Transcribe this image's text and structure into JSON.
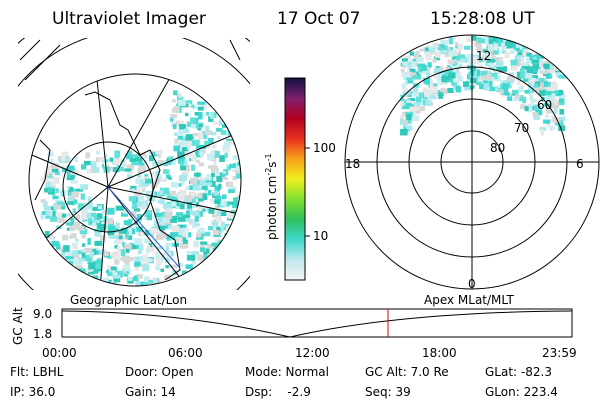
{
  "header": {
    "title": "Ultraviolet Imager",
    "date": "17 Oct 07",
    "time": "15:28:08 UT"
  },
  "colorbar": {
    "ticks": [
      "100",
      "10"
    ],
    "unit": {
      "base": "photon cm",
      "exp1": "-2",
      "mid": "s",
      "exp2": "-1"
    }
  },
  "polar": {
    "mlt": [
      "12",
      "18",
      "6",
      "0"
    ],
    "mlat": [
      "60",
      "70",
      "80"
    ]
  },
  "captions": {
    "left": "Geographic Lat/Lon",
    "right": "Apex MLat/MLT"
  },
  "altitude": {
    "ylabel": "GC Alt",
    "yticks": [
      "9.0",
      "1.8"
    ],
    "xticks": [
      "00:00",
      "06:00",
      "12:00",
      "18:00",
      "23:59"
    ]
  },
  "info": [
    [
      "Flt: LBHL",
      "IP: 36.0"
    ],
    [
      "Door: Open",
      "Gain: 14"
    ],
    [
      "Mode: Normal",
      "Dsp:    -2.9"
    ],
    [
      "GC Alt: 7.0 Re",
      "Seq: 39"
    ],
    [
      "GLat: -82.3",
      "GLon: 223.4"
    ]
  ]
}
